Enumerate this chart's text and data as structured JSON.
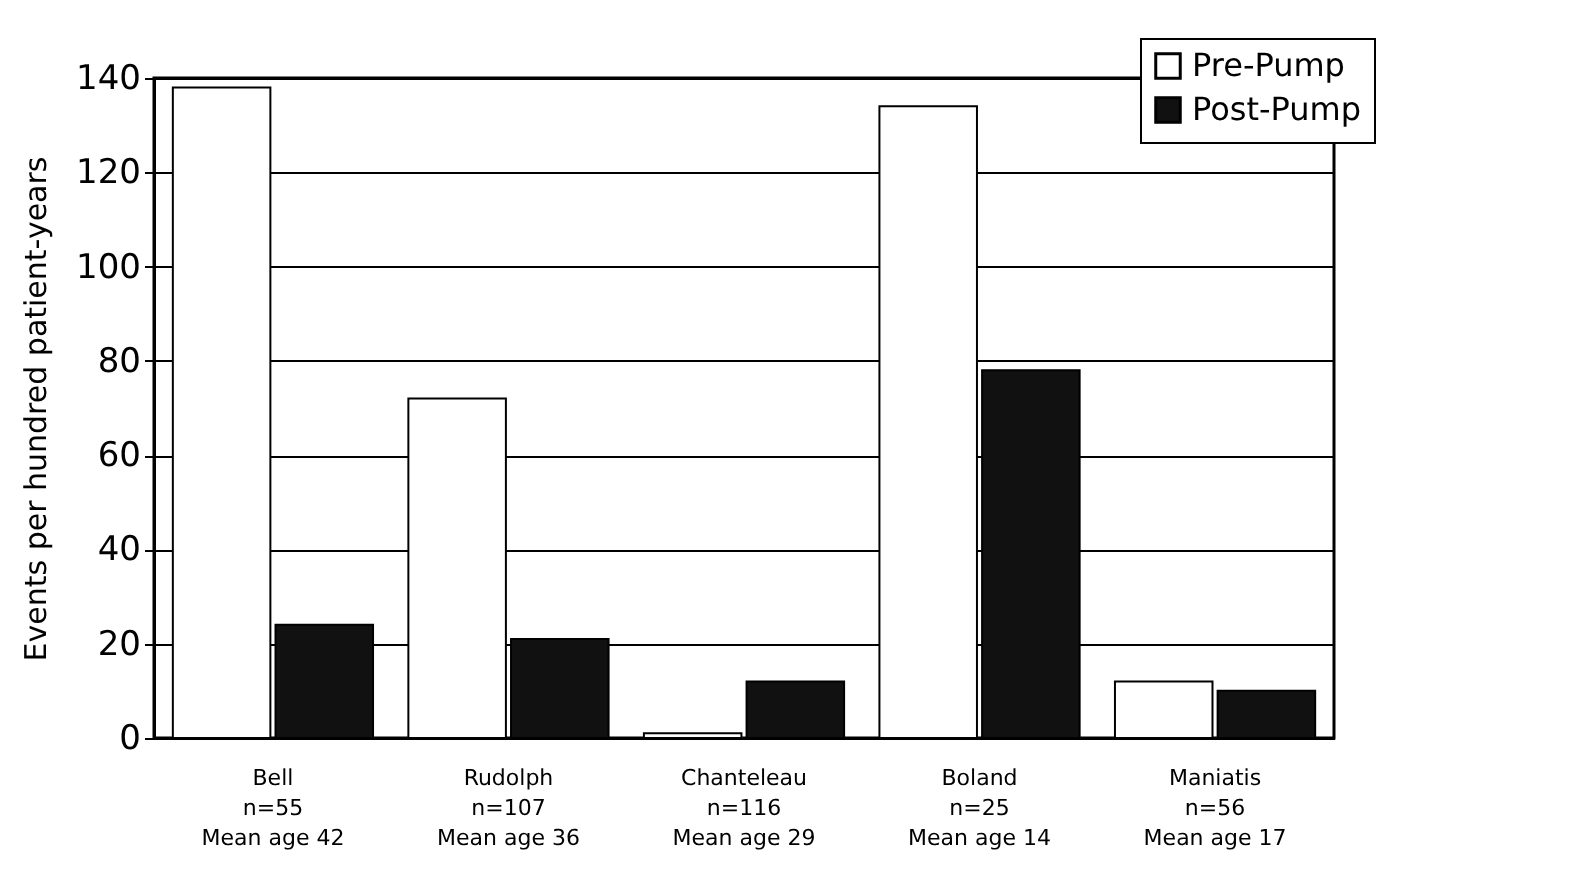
{
  "chart_data": {
    "type": "bar",
    "ylabel": "Events per hundred patient-years",
    "categories": [
      "Bell\nn=55\nMean age 42",
      "Rudolph\nn=107\nMean age 36",
      "Chanteleau\nn=116\nMean age 29",
      "Boland\nn=25\nMean age 14",
      "Maniatis\nn=56\nMean age 17"
    ],
    "series": [
      {
        "name": "Pre-Pump",
        "color": "#ffffff",
        "values": [
          138,
          72,
          1,
          134,
          12
        ]
      },
      {
        "name": "Post-Pump",
        "color": "#111111",
        "values": [
          24,
          21,
          12,
          78,
          10
        ]
      }
    ],
    "ylim": [
      0,
      140
    ],
    "yticks": [
      0,
      20,
      40,
      60,
      80,
      100,
      120,
      140
    ],
    "grid": "y",
    "legend": "top right"
  }
}
